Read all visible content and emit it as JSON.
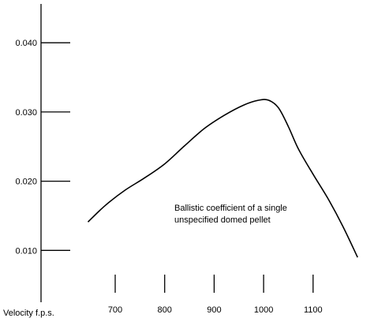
{
  "chart_data": {
    "type": "line",
    "title": "",
    "xlabel": "Velocity f.p.s.",
    "ylabel": "",
    "xlim": [
      620,
      1195
    ],
    "ylim": [
      0.0,
      0.0465
    ],
    "x_ticks": [
      700,
      800,
      900,
      1000,
      1100
    ],
    "x_tick_labels": [
      "700",
      "800",
      "900",
      "1000",
      "1100"
    ],
    "y_ticks": [
      0.01,
      0.02,
      0.03,
      0.04
    ],
    "y_tick_labels": [
      "0.010",
      "0.020",
      "0.030",
      "0.040"
    ],
    "grid": false,
    "legend": "none",
    "annotation": [
      "Ballistic coefficient of a single",
      "unspecified domed pellet"
    ],
    "series": [
      {
        "name": "",
        "color": "#000000",
        "x": [
          645,
          680,
          720,
          760,
          800,
          840,
          880,
          920,
          960,
          990,
          1010,
          1030,
          1050,
          1070,
          1100,
          1130,
          1160,
          1190
        ],
        "y": [
          0.0141,
          0.0165,
          0.0187,
          0.0205,
          0.0225,
          0.0251,
          0.0276,
          0.0295,
          0.031,
          0.0317,
          0.0317,
          0.0306,
          0.0279,
          0.0247,
          0.021,
          0.0175,
          0.0135,
          0.009
        ]
      }
    ]
  }
}
